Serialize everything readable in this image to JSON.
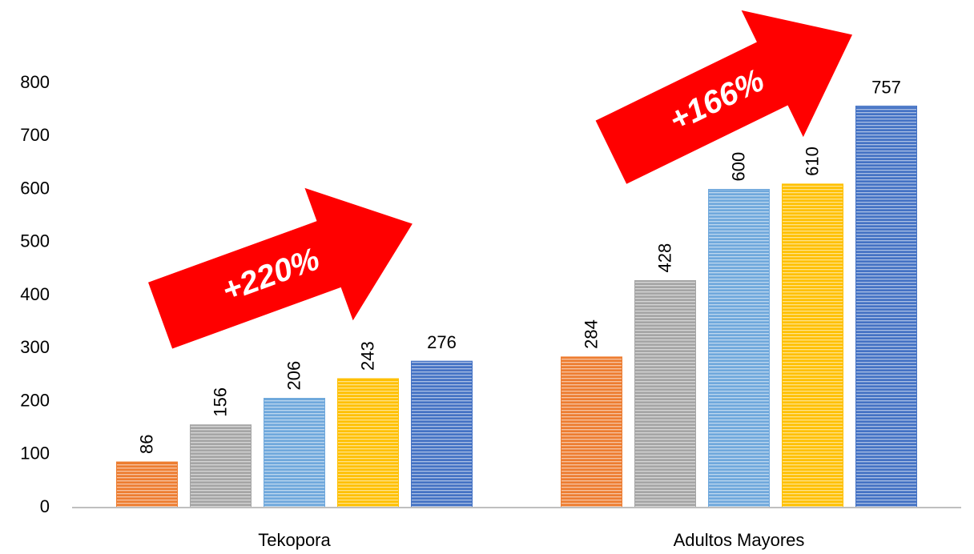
{
  "chart_data": {
    "type": "bar",
    "categories": [
      "Tekopora",
      "Adultos Mayores"
    ],
    "series": [
      {
        "color": "#ed7d31",
        "values": [
          86,
          284
        ]
      },
      {
        "color": "#a5a5a5",
        "values": [
          156,
          428
        ]
      },
      {
        "color": "#6fa8dc",
        "values": [
          206,
          600
        ]
      },
      {
        "color": "#ffc000",
        "values": [
          243,
          610
        ]
      },
      {
        "color": "#4472c4",
        "values": [
          276,
          757
        ]
      }
    ],
    "ylim": [
      0,
      800
    ],
    "yticks": [
      0,
      100,
      200,
      300,
      400,
      500,
      600,
      700,
      800
    ],
    "grid": false,
    "annotations": [
      "+220%",
      "+166%"
    ]
  }
}
